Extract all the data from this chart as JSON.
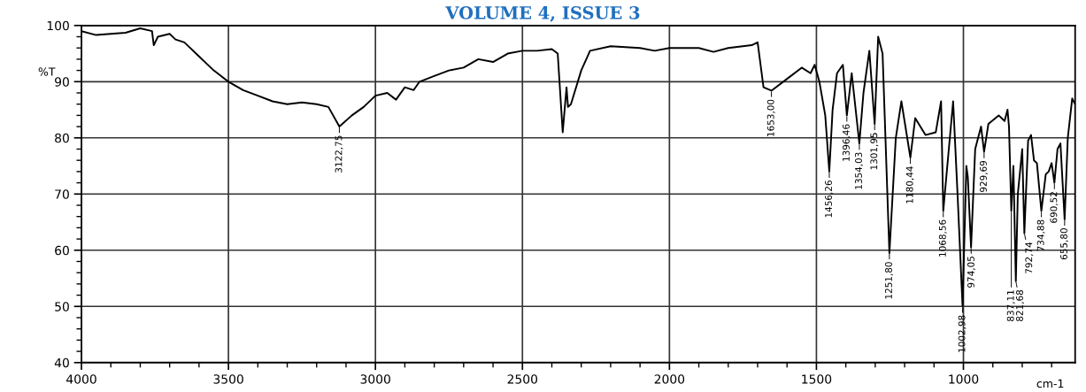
{
  "chart_data": {
    "type": "line",
    "ylabel": "%T",
    "xlabel": "cm-1",
    "xlim": [
      4000,
      620
    ],
    "ylim": [
      40,
      100
    ],
    "xticks": [
      4000,
      3500,
      3000,
      2500,
      2000,
      1500,
      1000
    ],
    "yticks": [
      40,
      50,
      60,
      70,
      80,
      90,
      100
    ],
    "grid": true,
    "marker": "none",
    "line_style": "solid",
    "series": [
      {
        "color": "#000000",
        "x": [
          4000,
          3950,
          3900,
          3850,
          3800,
          3760,
          3754,
          3740,
          3700,
          3680,
          3650,
          3600,
          3550,
          3500,
          3450,
          3400,
          3350,
          3300,
          3250,
          3200,
          3160,
          3122.75,
          3080,
          3040,
          3000,
          2960,
          2930,
          2900,
          2870,
          2850,
          2800,
          2750,
          2700,
          2650,
          2600,
          2550,
          2500,
          2450,
          2400,
          2380,
          2363,
          2350,
          2345,
          2335,
          2300,
          2270,
          2200,
          2100,
          2050,
          2000,
          1900,
          1850,
          1800,
          1720,
          1700,
          1680,
          1653,
          1600,
          1550,
          1520,
          1506,
          1490,
          1470,
          1456.26,
          1445,
          1430,
          1410,
          1396.46,
          1380,
          1354.03,
          1340,
          1320,
          1301.95,
          1290,
          1275,
          1251.8,
          1230,
          1211,
          1180.44,
          1164,
          1129,
          1094,
          1076,
          1068.56,
          1035,
          1020,
          1002.98,
          990,
          985,
          974.05,
          960,
          940,
          929.69,
          915,
          880,
          860,
          850,
          845,
          837.11,
          830,
          821.68,
          815,
          800,
          792.74,
          780,
          770,
          760,
          750,
          734.88,
          720,
          710,
          700,
          690.52,
          680,
          670,
          655.8,
          645,
          630,
          620
        ],
        "values": [
          99,
          98.3,
          98.5,
          98.7,
          99.5,
          99,
          96.5,
          98,
          98.5,
          97.5,
          97,
          94.5,
          92,
          90,
          88.5,
          87.5,
          86.5,
          86,
          86.3,
          86,
          85.5,
          82,
          84,
          85.5,
          87.5,
          88,
          86.8,
          89,
          88.5,
          90,
          91,
          92,
          92.5,
          94,
          93.5,
          95,
          95.5,
          95.5,
          95.8,
          95,
          81,
          89,
          85.5,
          86,
          92,
          95.5,
          96.3,
          96,
          95.5,
          96,
          96,
          95.3,
          96,
          96.5,
          97,
          89,
          88.4,
          90.5,
          92.5,
          91.5,
          93,
          90,
          84,
          74,
          85,
          91.5,
          93,
          84,
          91.5,
          79,
          88,
          95.5,
          82.5,
          98,
          95,
          59.5,
          80,
          86.5,
          76.5,
          83.5,
          80.5,
          81,
          86.5,
          67,
          86.5,
          70,
          50,
          75,
          73,
          60.5,
          78,
          82,
          77.5,
          82.5,
          84,
          83,
          85,
          82,
          67,
          75,
          54.5,
          70,
          78,
          63,
          79.5,
          80.5,
          76,
          75.5,
          67,
          73.5,
          74,
          75.5,
          72,
          78,
          79,
          65.5,
          80,
          87,
          86
        ]
      }
    ],
    "annotations": [
      "VOLUME 4, ISSUE 3",
      {
        "text": "3122,75",
        "x": 3122.75,
        "y": 82
      },
      {
        "text": "1653,00",
        "x": 1653,
        "y": 88.4
      },
      {
        "text": "1456,26",
        "x": 1456.26,
        "y": 74
      },
      {
        "text": "1396,46",
        "x": 1396.46,
        "y": 84
      },
      {
        "text": "1354,03",
        "x": 1354.03,
        "y": 79
      },
      {
        "text": "1301,95",
        "x": 1301.95,
        "y": 82.5
      },
      {
        "text": "1251,80",
        "x": 1251.8,
        "y": 59.5
      },
      {
        "text": "1180,44",
        "x": 1180.44,
        "y": 76.5
      },
      {
        "text": "1068,56",
        "x": 1068.56,
        "y": 67
      },
      {
        "text": "1002,98",
        "x": 1002.98,
        "y": 50
      },
      {
        "text": "974,05",
        "x": 974.05,
        "y": 60.5
      },
      {
        "text": "929,69",
        "x": 929.69,
        "y": 77.5
      },
      {
        "text": "837,11",
        "x": 837.11,
        "y": 67
      },
      {
        "text": "821,68",
        "x": 821.68,
        "y": 54.5
      },
      {
        "text": "792,74",
        "x": 792.74,
        "y": 63
      },
      {
        "text": "734,88",
        "x": 734.88,
        "y": 67
      },
      {
        "text": "690,52",
        "x": 690.52,
        "y": 72
      },
      {
        "text": "655,80",
        "x": 655.8,
        "y": 65.5
      }
    ]
  }
}
